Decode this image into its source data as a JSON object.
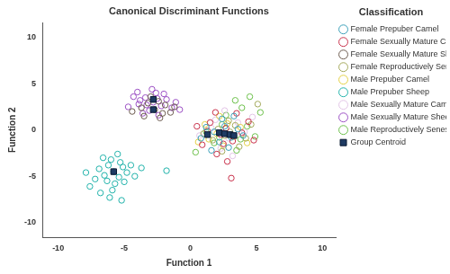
{
  "chart_data": {
    "type": "scatter",
    "title": "Canonical Discriminant Functions",
    "x_label": "Function 1",
    "y_label": "Function 2",
    "legend_title": "Classification",
    "legend": "right",
    "grid": false,
    "xlim": [
      -11.2,
      11
    ],
    "xticks": [
      -10,
      -5,
      0,
      5,
      10
    ],
    "ylim": [
      -11.6,
      11.6
    ],
    "yticks": [
      -10,
      -5,
      0,
      5,
      10
    ],
    "series": [
      {
        "name": "Female Prepuber Camel",
        "color": "#3a9fb8",
        "marker": "circle",
        "values": [
          [
            1.8,
            -0.2
          ],
          [
            2.6,
            0.4
          ],
          [
            3.1,
            -0.8
          ],
          [
            2.2,
            -1.3
          ],
          [
            1.2,
            0.3
          ],
          [
            3.6,
            0.1
          ],
          [
            2.9,
            -1.9
          ],
          [
            0.8,
            -0.9
          ],
          [
            4.0,
            -0.6
          ],
          [
            2.4,
            1.2
          ],
          [
            1.6,
            -2.2
          ],
          [
            3.3,
            1.5
          ]
        ]
      },
      {
        "name": "Female Sexually Mature Camel",
        "color": "#c8304a",
        "marker": "circle",
        "values": [
          [
            2.3,
            -0.5
          ],
          [
            1.5,
            0.8
          ],
          [
            3.2,
            -1.2
          ],
          [
            2.7,
            0.2
          ],
          [
            0.9,
            -1.6
          ],
          [
            3.9,
            -0.3
          ],
          [
            2.0,
            -2.6
          ],
          [
            4.4,
            0.9
          ],
          [
            1.3,
            -0.1
          ],
          [
            2.8,
            -3.4
          ],
          [
            3.5,
            1.8
          ],
          [
            0.5,
            0.4
          ],
          [
            4.8,
            -1.1
          ],
          [
            3.1,
            -5.2
          ],
          [
            1.9,
            1.9
          ],
          [
            2.5,
            -1.5
          ]
        ]
      },
      {
        "name": "Female Sexually Mature Sheep",
        "color": "#6b5a4e",
        "marker": "circle",
        "values": [
          [
            -2.7,
            2.2
          ],
          [
            -3.2,
            2.9
          ],
          [
            -2.1,
            1.8
          ],
          [
            -3.7,
            2.4
          ],
          [
            -1.9,
            2.7
          ],
          [
            -2.4,
            3.1
          ],
          [
            -3.5,
            1.5
          ],
          [
            -4.4,
            2.0
          ],
          [
            -1.5,
            1.9
          ],
          [
            -3.0,
            3.6
          ],
          [
            -2.3,
            1.3
          ],
          [
            -1.2,
            2.5
          ]
        ]
      },
      {
        "name": "Female Reproductively Senescent Camel",
        "color": "#a3a85a",
        "marker": "circle",
        "values": [
          [
            2.6,
            -0.6
          ],
          [
            3.4,
            0.5
          ],
          [
            1.7,
            -1.1
          ],
          [
            2.9,
            1.0
          ],
          [
            4.2,
            -0.9
          ],
          [
            2.1,
            0.1
          ],
          [
            3.7,
            -1.8
          ],
          [
            1.0,
            -0.4
          ],
          [
            4.6,
            0.6
          ],
          [
            2.4,
            -2.3
          ],
          [
            5.1,
            2.8
          ],
          [
            3.0,
            -0.2
          ]
        ]
      },
      {
        "name": "Male Prepuber Camel",
        "color": "#e3d043",
        "marker": "circle",
        "values": [
          [
            2.0,
            -0.4
          ],
          [
            2.8,
            0.7
          ],
          [
            1.4,
            -1.0
          ],
          [
            3.3,
            -0.7
          ],
          [
            2.5,
            -1.7
          ],
          [
            1.1,
            0.6
          ],
          [
            3.8,
            0.3
          ],
          [
            0.6,
            -1.3
          ],
          [
            2.2,
            1.5
          ],
          [
            4.3,
            -1.4
          ]
        ]
      },
      {
        "name": "Male Prepuber Sheep",
        "color": "#20b2aa",
        "marker": "circle",
        "values": [
          [
            -5.8,
            -4.5
          ],
          [
            -6.2,
            -3.8
          ],
          [
            -5.4,
            -5.1
          ],
          [
            -6.5,
            -4.9
          ],
          [
            -5.1,
            -4.0
          ],
          [
            -6.0,
            -3.2
          ],
          [
            -5.7,
            -5.8
          ],
          [
            -4.8,
            -4.6
          ],
          [
            -6.9,
            -4.2
          ],
          [
            -5.3,
            -3.5
          ],
          [
            -6.3,
            -5.5
          ],
          [
            -7.2,
            -5.3
          ],
          [
            -4.5,
            -3.8
          ],
          [
            -5.9,
            -6.5
          ],
          [
            -6.6,
            -3.0
          ],
          [
            -5.0,
            -5.6
          ],
          [
            -7.6,
            -6.1
          ],
          [
            -6.1,
            -7.3
          ],
          [
            -4.2,
            -5.0
          ],
          [
            -5.5,
            -2.6
          ],
          [
            -6.8,
            -6.8
          ],
          [
            -3.7,
            -4.1
          ],
          [
            -1.8,
            -4.4
          ],
          [
            -5.2,
            -7.6
          ],
          [
            -7.9,
            -4.6
          ]
        ]
      },
      {
        "name": "Male Sexually Mature Camel",
        "color": "#e2c4e6",
        "marker": "circle",
        "values": [
          [
            2.9,
            -0.9
          ],
          [
            1.6,
            0.2
          ],
          [
            3.6,
            0.8
          ],
          [
            2.3,
            -2.0
          ],
          [
            0.7,
            -0.6
          ],
          [
            4.1,
            -0.2
          ],
          [
            1.9,
            1.1
          ],
          [
            3.2,
            -2.8
          ],
          [
            4.7,
            1.4
          ],
          [
            2.6,
            2.1
          ]
        ]
      },
      {
        "name": "Male Sexually Mature Sheep",
        "color": "#9b4fc4",
        "marker": "circle",
        "values": [
          [
            -2.8,
            3.0
          ],
          [
            -3.4,
            3.5
          ],
          [
            -2.2,
            2.6
          ],
          [
            -3.9,
            2.8
          ],
          [
            -1.8,
            3.3
          ],
          [
            -2.6,
            4.0
          ],
          [
            -3.1,
            2.1
          ],
          [
            -4.3,
            3.6
          ],
          [
            -1.4,
            2.4
          ],
          [
            -2.0,
            3.9
          ],
          [
            -3.6,
            1.8
          ],
          [
            -4.7,
            2.5
          ],
          [
            -1.1,
            3.0
          ],
          [
            -2.9,
            4.4
          ],
          [
            -3.3,
            2.7
          ],
          [
            -2.4,
            1.6
          ],
          [
            -4.0,
            4.1
          ],
          [
            -0.8,
            2.2
          ],
          [
            -3.8,
            3.2
          ],
          [
            -2.5,
            3.4
          ]
        ]
      },
      {
        "name": "Male Reproductively Senescent Camel",
        "color": "#6cc04a",
        "marker": "circle",
        "values": [
          [
            3.0,
            -0.5
          ],
          [
            2.4,
            0.6
          ],
          [
            3.8,
            -1.0
          ],
          [
            1.8,
            -1.4
          ],
          [
            4.3,
            0.4
          ],
          [
            2.7,
            1.6
          ],
          [
            3.5,
            -2.2
          ],
          [
            1.2,
            -0.2
          ],
          [
            4.9,
            -0.7
          ],
          [
            3.4,
            3.2
          ],
          [
            4.5,
            3.6
          ],
          [
            5.3,
            1.9
          ],
          [
            2.2,
            -0.8
          ],
          [
            3.9,
            2.4
          ],
          [
            0.4,
            -2.4
          ]
        ]
      },
      {
        "name": "Group Centroid",
        "color": "#1f3b63",
        "marker": "square",
        "values": [
          [
            1.3,
            -0.5
          ],
          [
            2.2,
            -0.3
          ],
          [
            2.6,
            -0.4
          ],
          [
            3.0,
            -0.5
          ],
          [
            3.3,
            -0.6
          ],
          [
            -2.8,
            3.3
          ],
          [
            -2.8,
            2.2
          ],
          [
            -5.8,
            -4.5
          ]
        ]
      }
    ]
  }
}
